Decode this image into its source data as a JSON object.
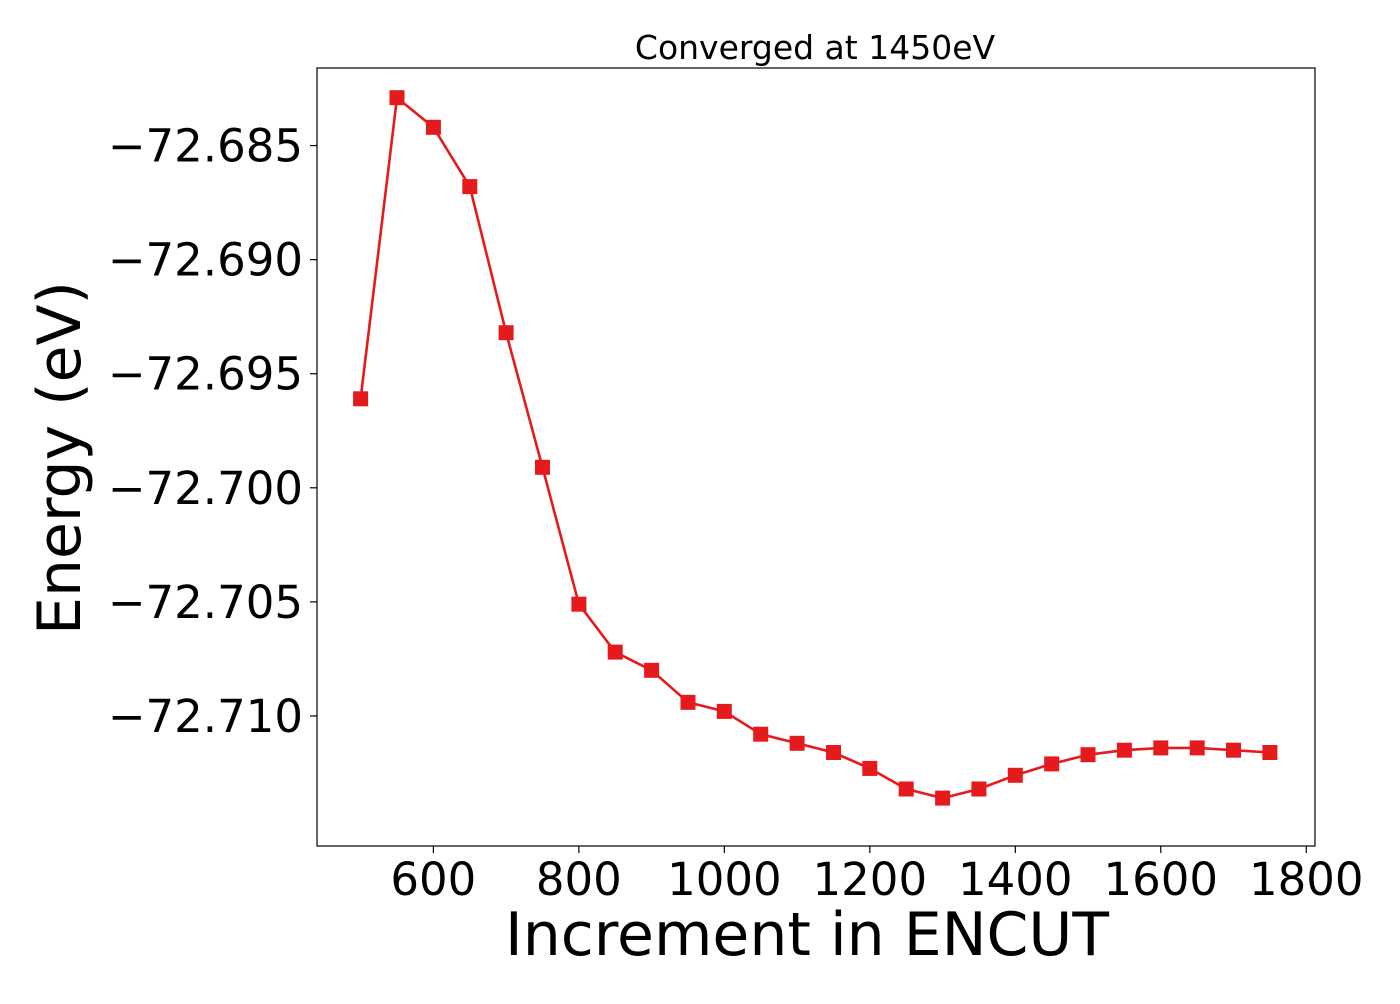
{
  "chart_data": {
    "type": "line",
    "title": "Converged at 1450eV",
    "xlabel": "Increment in ENCUT",
    "ylabel": "Energy (eV)",
    "x": [
      500,
      550,
      600,
      650,
      700,
      750,
      800,
      850,
      900,
      950,
      1000,
      1050,
      1100,
      1150,
      1200,
      1250,
      1300,
      1350,
      1400,
      1450,
      1500,
      1550,
      1600,
      1650,
      1700,
      1750
    ],
    "series": [
      {
        "name": "",
        "color": "#e41a1c",
        "marker": "square",
        "values": [
          -72.6961,
          -72.6829,
          -72.6842,
          -72.6868,
          -72.6932,
          -72.6991,
          -72.7051,
          -72.7072,
          -72.708,
          -72.7094,
          -72.7098,
          -72.7108,
          -72.7112,
          -72.7116,
          -72.7123,
          -72.7132,
          -72.7136,
          -72.7132,
          -72.7126,
          -72.7121,
          -72.7117,
          -72.7115,
          -72.7114,
          -72.7114,
          -72.7115,
          -72.7116
        ]
      }
    ],
    "xlim": [
      440,
      1812
    ],
    "ylim": [
      -72.7157,
      -72.6816
    ],
    "xticks": [
      600,
      800,
      1000,
      1200,
      1400,
      1600,
      1800
    ],
    "xtick_labels": [
      "600",
      "800",
      "1000",
      "1200",
      "1400",
      "1600",
      "1800"
    ],
    "yticks": [
      -72.685,
      -72.69,
      -72.695,
      -72.7,
      -72.705,
      -72.71
    ],
    "ytick_labels": [
      "−72.685",
      "−72.690",
      "−72.695",
      "−72.700",
      "−72.705",
      "−72.710"
    ],
    "grid": false,
    "legend": "none"
  }
}
